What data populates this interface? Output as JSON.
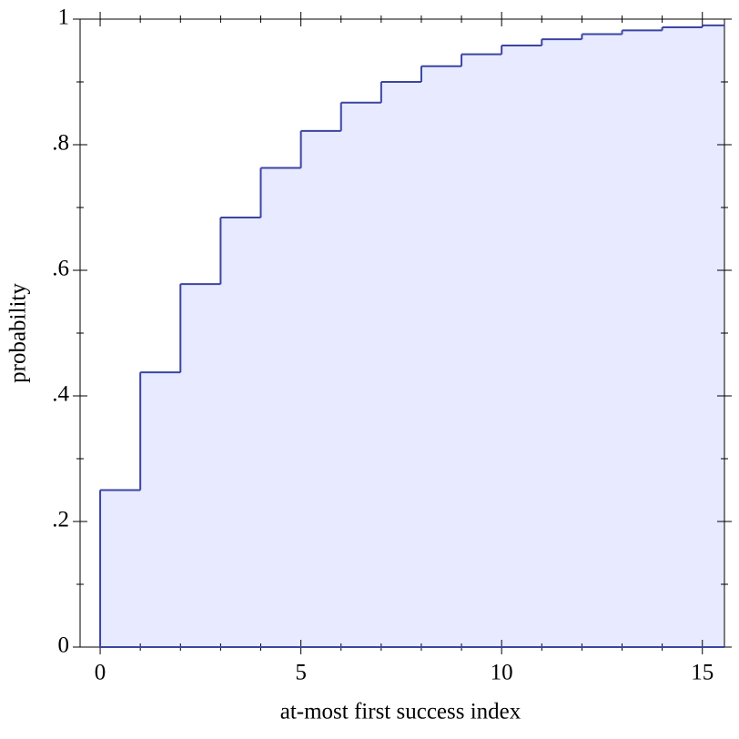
{
  "chart_data": {
    "type": "step",
    "x_label": "at-most first success index",
    "y_label": "probability",
    "x": [
      0,
      1,
      2,
      3,
      4,
      5,
      6,
      7,
      8,
      9,
      10,
      11,
      12,
      13,
      14,
      15
    ],
    "values": [
      0.25,
      0.4375,
      0.578,
      0.684,
      0.763,
      0.822,
      0.867,
      0.9,
      0.925,
      0.944,
      0.958,
      0.968,
      0.976,
      0.982,
      0.987,
      0.99
    ],
    "color": "#3b44a2",
    "fill_color": "#e8eaff",
    "xlim": [
      -0.5,
      15.55
    ],
    "ylim": [
      0,
      1
    ],
    "xticks": [
      0,
      5,
      10,
      15
    ],
    "yticks": [
      0,
      {
        "value": 0.2,
        "label": ".2"
      },
      {
        "value": 0.4,
        "label": ".4"
      },
      {
        "value": 0.6,
        "label": ".6"
      },
      {
        "value": 0.8,
        "label": ".8"
      },
      1
    ]
  }
}
